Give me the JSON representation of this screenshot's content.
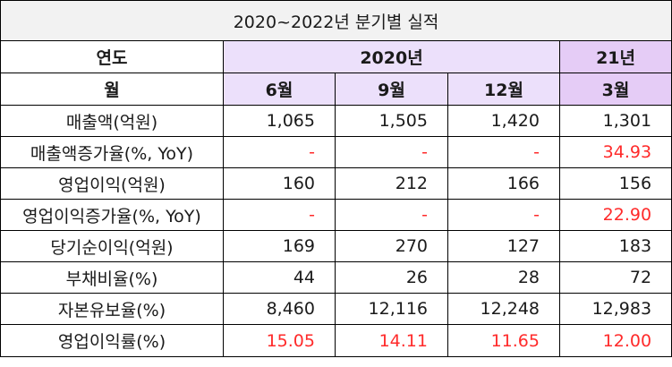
{
  "title": "2020~2022년 분기별 실적",
  "colors": {
    "title_bg": "#f2f2f2",
    "header_2020_bg": "#ece0fb",
    "header_21_bg": "#e5ccf6",
    "negative_or_highlight": "#ff2a2a"
  },
  "header": {
    "year_label": "연도",
    "year_2020": "2020년",
    "year_21": "21년",
    "month_label": "월",
    "months": [
      "6월",
      "9월",
      "12월",
      "3월"
    ]
  },
  "rows": [
    {
      "label": "매출액(억원)",
      "values": [
        "1,065",
        "1,505",
        "1,420",
        "1,301"
      ],
      "red": [
        false,
        false,
        false,
        false
      ]
    },
    {
      "label": "매출액증가율(%, YoY)",
      "values": [
        "-",
        "-",
        "-",
        "34.93"
      ],
      "red": [
        true,
        true,
        true,
        true
      ]
    },
    {
      "label": "영업이익(억원)",
      "values": [
        "160",
        "212",
        "166",
        "156"
      ],
      "red": [
        false,
        false,
        false,
        false
      ]
    },
    {
      "label": "영업이익증가율(%, YoY)",
      "values": [
        "-",
        "-",
        "-",
        "22.90"
      ],
      "red": [
        true,
        true,
        true,
        true
      ]
    },
    {
      "label": "당기순이익(억원)",
      "values": [
        "169",
        "270",
        "127",
        "183"
      ],
      "red": [
        false,
        false,
        false,
        false
      ]
    },
    {
      "label": "부채비율(%)",
      "values": [
        "44",
        "26",
        "28",
        "72"
      ],
      "red": [
        false,
        false,
        false,
        false
      ]
    },
    {
      "label": "자본유보율(%)",
      "values": [
        "8,460",
        "12,116",
        "12,248",
        "12,983"
      ],
      "red": [
        false,
        false,
        false,
        false
      ]
    },
    {
      "label": "영업이익률(%)",
      "values": [
        "15.05",
        "14.11",
        "11.65",
        "12.00"
      ],
      "red": [
        true,
        true,
        true,
        true
      ]
    }
  ]
}
